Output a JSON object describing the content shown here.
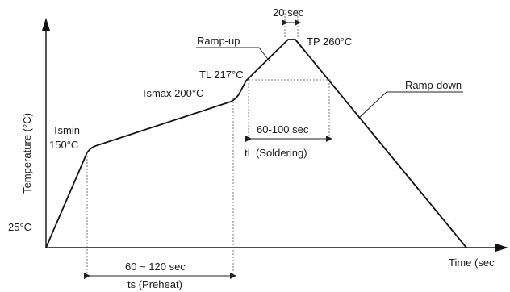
{
  "axes": {
    "y_label": "Temperature (°C)",
    "x_label": "Time (sec",
    "origin_label": "25°C"
  },
  "points": {
    "tsmin": {
      "name": "Tsmin",
      "value": "150°C"
    },
    "tsmax": {
      "label": "Tsmax 200°C"
    },
    "tl": {
      "label": "TL 217°C"
    },
    "tp": {
      "label": "TP 260°C"
    }
  },
  "annotations": {
    "ramp_up": "Ramp-up",
    "ramp_down": "Ramp-down",
    "peak_duration": "20 sec",
    "soldering_duration": "60-100 sec",
    "soldering_name": "tL (Soldering)",
    "preheat_duration": "60 ~ 120 sec",
    "preheat_name": "ts (Preheat)"
  },
  "colors": {
    "ink": "#111111",
    "background": "#ffffff"
  }
}
